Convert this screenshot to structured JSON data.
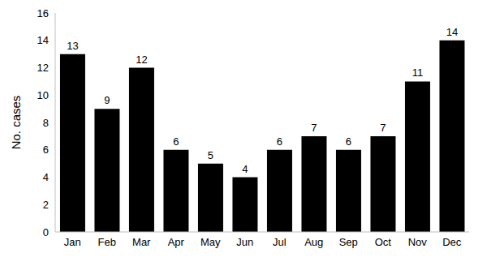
{
  "chart_data": {
    "type": "bar",
    "y_label": "No. cases",
    "categories": [
      "Jan",
      "Feb",
      "Mar",
      "Apr",
      "May",
      "Jun",
      "Jul",
      "Aug",
      "Sep",
      "Oct",
      "Nov",
      "Dec"
    ],
    "values": [
      13,
      9,
      12,
      6,
      5,
      4,
      6,
      7,
      6,
      7,
      11,
      14
    ],
    "color": "#000000",
    "ylim": [
      0,
      16
    ],
    "yticks": [
      0,
      2,
      4,
      6,
      8,
      10,
      12,
      14,
      16
    ],
    "grid": false,
    "data_labels": true
  }
}
